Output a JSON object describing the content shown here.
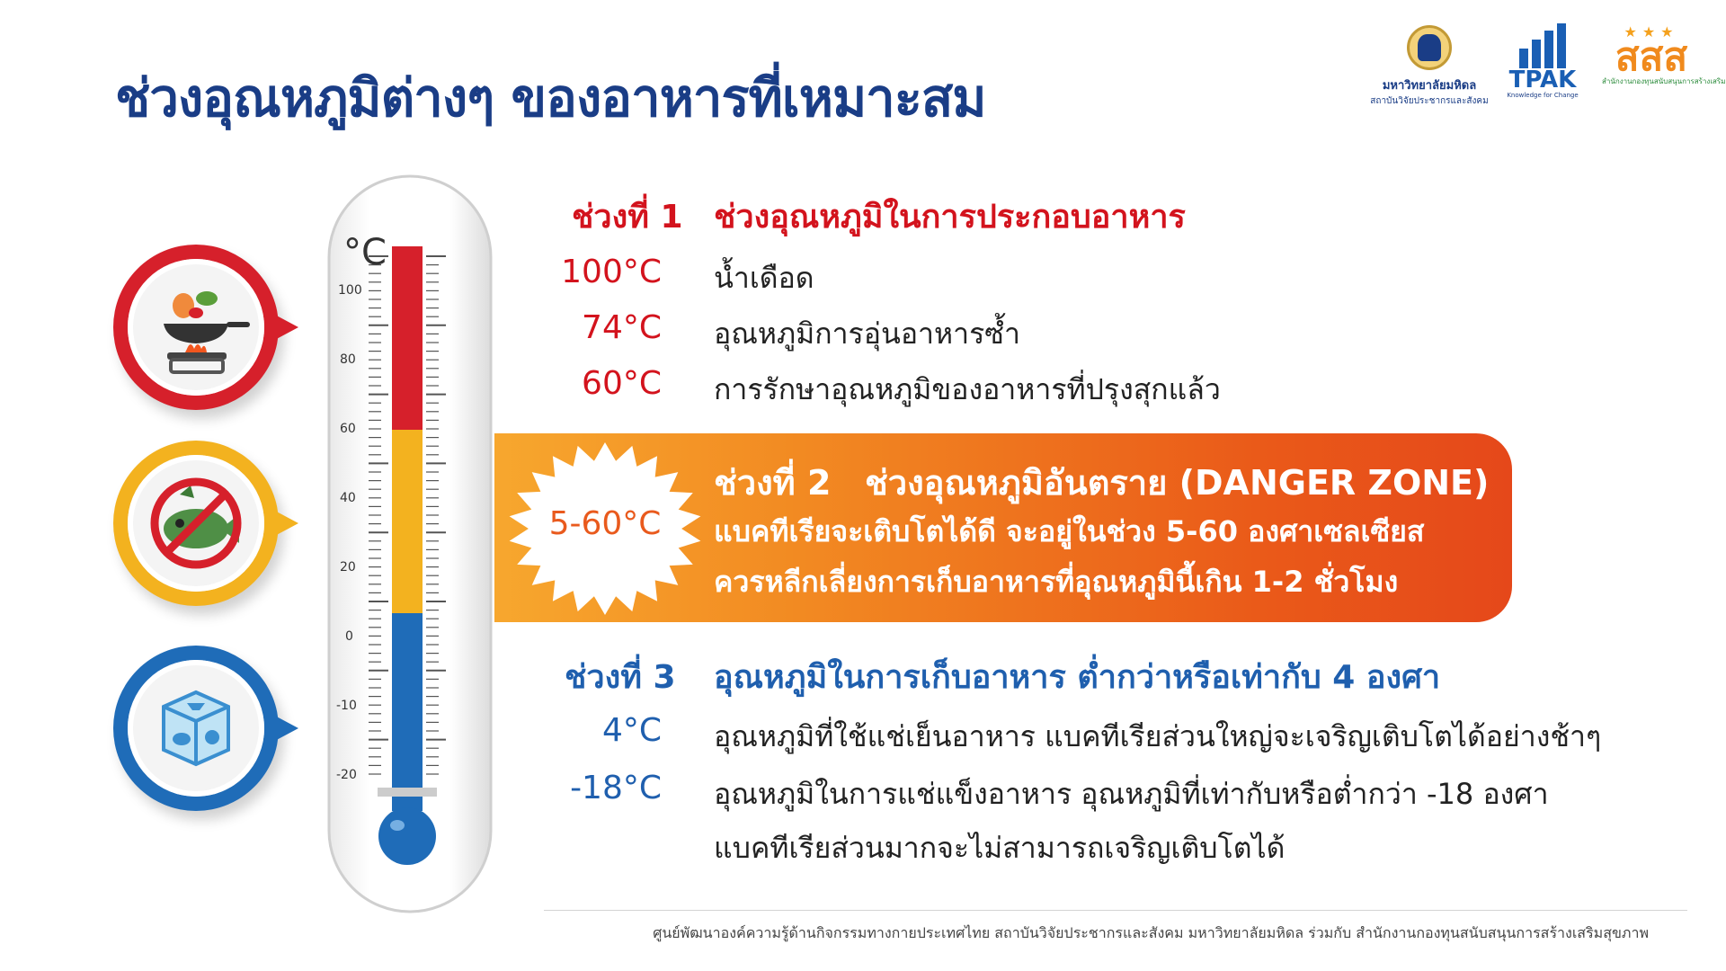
{
  "title": "ช่วงอุณหภูมิต่างๆ ของอาหารที่เหมาะสม",
  "logos": {
    "mahidol_line1": "มหาวิทยาลัยมหิดล",
    "mahidol_line2": "สถาบันวิจัยประชากรและสังคม",
    "tpak_word": "TPAK",
    "tpak_tagline": "Knowledge for Change",
    "sss_word": "สสส",
    "sss_line": "สำนักงานกองทุนสนับสนุนการสร้างเสริมสุขภาพ"
  },
  "icons": [
    "cooking-pan-icon",
    "no-spoiled-food-icon",
    "frozen-food-ice-cube-icon"
  ],
  "thermometer": {
    "unit": "°C",
    "ticks": [
      "100",
      "80",
      "60",
      "40",
      "20",
      "0",
      "-10",
      "-20"
    ],
    "colors": {
      "hot": "#d6202b",
      "danger": "#f3b21f",
      "cold": "#1f6cb8"
    }
  },
  "zone1": {
    "label": "ช่วงที่ 1",
    "heading": "ช่วงอุณหภูมิในการประกอบอาหาร",
    "items": [
      {
        "temp": "100°C",
        "desc": "น้ำเดือด"
      },
      {
        "temp": "74°C",
        "desc": "อุณหภูมิการอุ่นอาหารซ้ำ"
      },
      {
        "temp": "60°C",
        "desc": "การรักษาอุณหภูมิของอาหารที่ปรุงสุกแล้ว"
      }
    ]
  },
  "zone2": {
    "badge": "5-60°C",
    "label": "ช่วงที่ 2",
    "heading": "ช่วงอุณหภูมิอันตราย (DANGER ZONE)",
    "line1": "แบคทีเรียจะเติบโตได้ดี จะอยู่ในช่วง 5-60 องศาเซลเซียส",
    "line2": "ควรหลีกเลี่ยงการเก็บอาหารที่อุณหภูมินี้เกิน 1-2 ชั่วโมง"
  },
  "zone3": {
    "label": "ช่วงที่ 3",
    "heading": "อุณหภูมิในการเก็บอาหาร ต่ำกว่าหรือเท่ากับ 4 องศา",
    "items": [
      {
        "temp": "4°C",
        "desc": "อุณหภูมิที่ใช้แช่เย็นอาหาร แบคทีเรียส่วนใหญ่จะเจริญเติบโตได้อย่างช้าๆ"
      },
      {
        "temp": "-18°C",
        "desc": "อุณหภูมิในการแช่แข็งอาหาร อุณหภูมิที่เท่ากับหรือต่ำกว่า -18 องศา"
      }
    ],
    "extra": "แบคทีเรียส่วนมากจะไม่สามารถเจริญเติบโตได้"
  },
  "footer": "ศูนย์พัฒนาองค์ความรู้ด้านกิจกรรมทางกายประเทศไทย สถาบันวิจัยประชากรและสังคม มหาวิทยาลัยมหิดล ร่วมกับ สำนักงานกองทุนสนับสนุนการสร้างเสริมสุขภาพ"
}
